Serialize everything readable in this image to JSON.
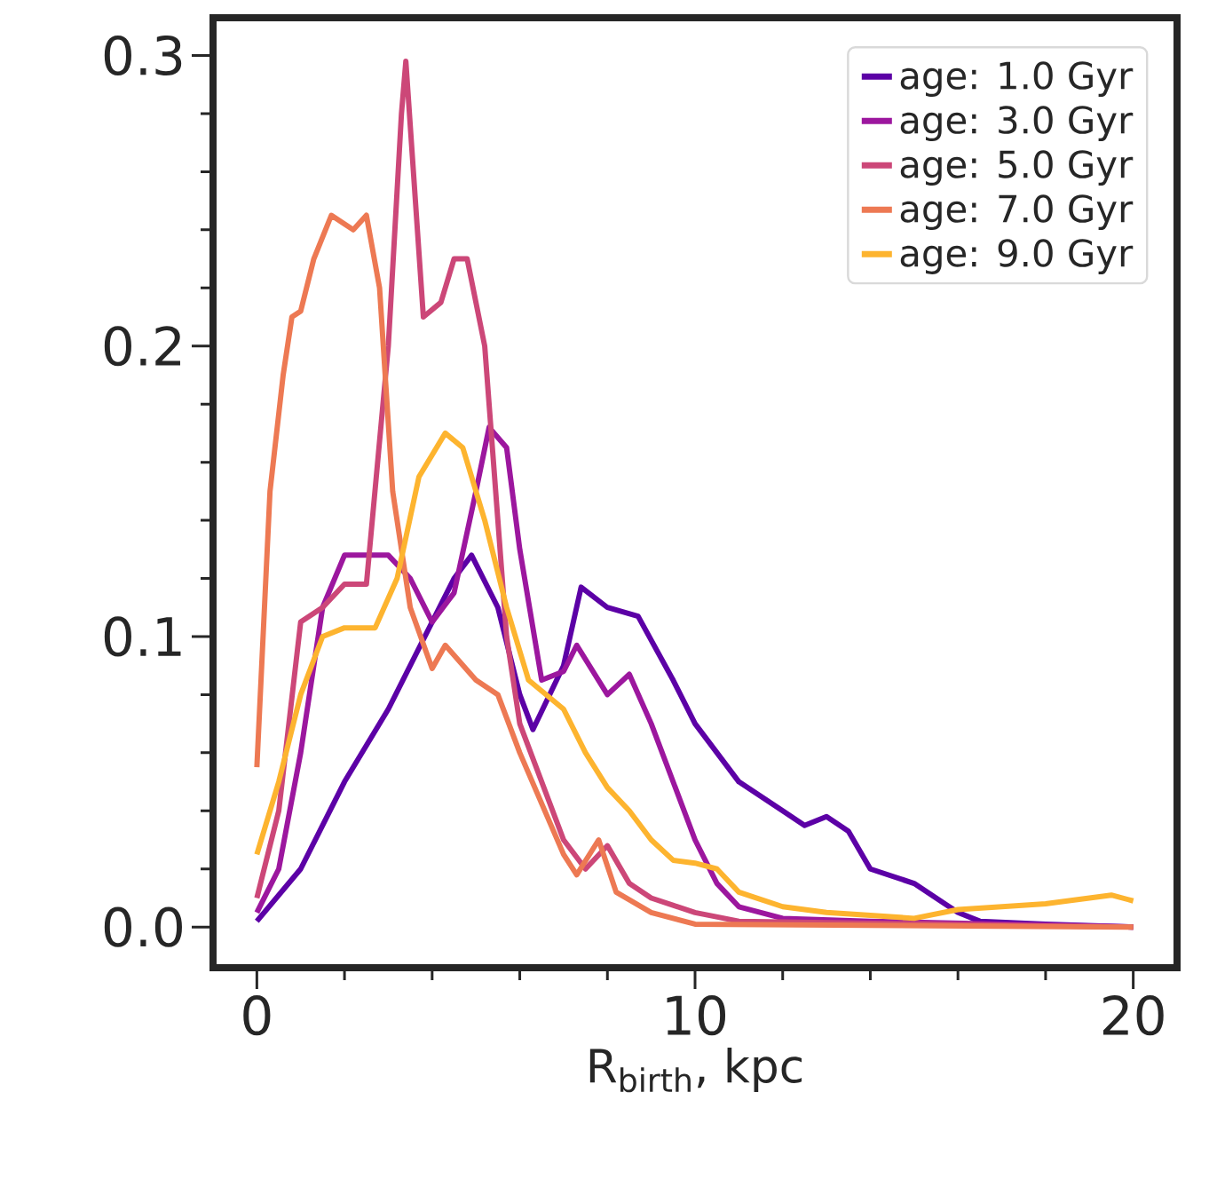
{
  "chart_data": {
    "type": "line",
    "xlabel": "R$_{birth}$, kpc",
    "xlim": [
      -1.0,
      21.0
    ],
    "ylim": [
      -0.014,
      0.313
    ],
    "xticks": [
      0,
      10,
      20
    ],
    "yticks": [
      {
        "value": 0,
        "label": "0.0"
      },
      0.1,
      0.2,
      0.3
    ],
    "legend": "top right",
    "grid": false,
    "marker": "none",
    "line_style": "solid",
    "series": [
      {
        "name": "age: 1.0 Gyr",
        "color": "#5c01a6",
        "x": [
          0,
          1,
          2,
          3,
          4,
          4.5,
          4.9,
          5.5,
          6,
          6.3,
          7,
          7.4,
          8,
          8.7,
          9.5,
          10,
          11,
          12,
          12.5,
          13,
          13.5,
          14,
          15,
          16,
          16.5,
          18,
          20
        ],
        "values": [
          0.002,
          0.02,
          0.05,
          0.075,
          0.105,
          0.12,
          0.128,
          0.11,
          0.08,
          0.068,
          0.09,
          0.117,
          0.11,
          0.107,
          0.085,
          0.07,
          0.05,
          0.04,
          0.035,
          0.038,
          0.033,
          0.02,
          0.015,
          0.005,
          0.002,
          0.001,
          0
        ]
      },
      {
        "name": "age: 3.0 Gyr",
        "color": "#9c179e",
        "x": [
          0,
          0.5,
          1,
          1.5,
          2,
          3,
          3.5,
          4,
          4.5,
          5,
          5.3,
          5.7,
          6,
          6.5,
          7,
          7.3,
          8,
          8.5,
          9,
          10,
          10.5,
          11,
          12,
          14,
          20
        ],
        "values": [
          0.005,
          0.02,
          0.06,
          0.11,
          0.128,
          0.128,
          0.12,
          0.105,
          0.115,
          0.15,
          0.172,
          0.165,
          0.13,
          0.085,
          0.088,
          0.097,
          0.08,
          0.087,
          0.07,
          0.03,
          0.015,
          0.007,
          0.003,
          0.002,
          0
        ]
      },
      {
        "name": "age: 5.0 Gyr",
        "color": "#cc4778",
        "x": [
          0,
          0.5,
          1,
          1.5,
          2,
          2.5,
          3,
          3.3,
          3.4,
          3.8,
          4.2,
          4.5,
          4.8,
          5.2,
          5.7,
          6,
          7,
          7.5,
          8,
          8.5,
          9,
          10,
          11,
          20
        ],
        "values": [
          0.01,
          0.04,
          0.105,
          0.11,
          0.118,
          0.118,
          0.2,
          0.28,
          0.298,
          0.21,
          0.215,
          0.23,
          0.23,
          0.2,
          0.1,
          0.07,
          0.03,
          0.02,
          0.028,
          0.015,
          0.01,
          0.005,
          0.002,
          0
        ]
      },
      {
        "name": "age: 7.0 Gyr",
        "color": "#ed7953",
        "x": [
          0,
          0.3,
          0.6,
          0.8,
          1,
          1.3,
          1.7,
          2.2,
          2.5,
          2.8,
          3.1,
          3.5,
          4,
          4.3,
          5,
          5.5,
          6,
          7,
          7.3,
          7.8,
          8.2,
          9,
          10,
          20
        ],
        "values": [
          0.055,
          0.15,
          0.19,
          0.21,
          0.212,
          0.23,
          0.245,
          0.24,
          0.245,
          0.22,
          0.15,
          0.11,
          0.089,
          0.097,
          0.085,
          0.08,
          0.06,
          0.025,
          0.018,
          0.03,
          0.012,
          0.005,
          0.001,
          0
        ]
      },
      {
        "name": "age: 9.0 Gyr",
        "color": "#fdb42f",
        "x": [
          0,
          0.5,
          1,
          1.5,
          2,
          2.7,
          3.2,
          3.7,
          4.3,
          4.7,
          5.2,
          5.7,
          6.2,
          7,
          7.5,
          8,
          8.5,
          9,
          9.5,
          10,
          10.5,
          11,
          12,
          13,
          14,
          15,
          16,
          17,
          18,
          19,
          19.5,
          20
        ],
        "values": [
          0.025,
          0.05,
          0.08,
          0.1,
          0.103,
          0.103,
          0.12,
          0.155,
          0.17,
          0.165,
          0.14,
          0.11,
          0.085,
          0.075,
          0.06,
          0.048,
          0.04,
          0.03,
          0.023,
          0.022,
          0.02,
          0.012,
          0.007,
          0.005,
          0.004,
          0.003,
          0.006,
          0.007,
          0.008,
          0.01,
          0.011,
          0.009
        ]
      }
    ]
  }
}
